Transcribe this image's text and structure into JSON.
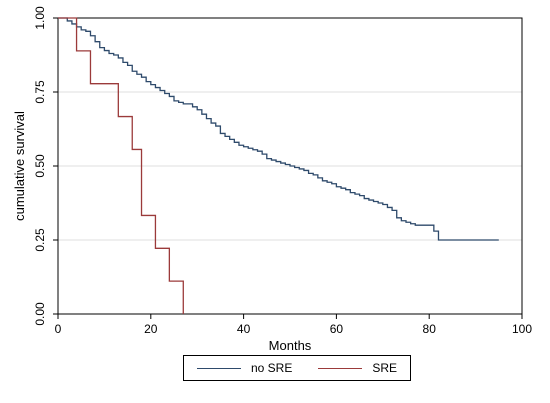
{
  "chart_data": {
    "type": "line",
    "step": true,
    "xlabel": "Months",
    "ylabel": "cumulative survival",
    "xlim": [
      0,
      100
    ],
    "ylim": [
      0,
      1
    ],
    "xticks": [
      "0",
      "20",
      "40",
      "60",
      "80",
      "100"
    ],
    "yticks": [
      "0.00",
      "0.25",
      "0.50",
      "0.75",
      "1.00"
    ],
    "grid": "horizontal",
    "legend_position": "bottom",
    "series": [
      {
        "name": "no SRE",
        "color": "#2e4a6b",
        "x": [
          0,
          2,
          3,
          4,
          5,
          6,
          7,
          8,
          9,
          10,
          11,
          12,
          13,
          14,
          15,
          16,
          17,
          18,
          19,
          20,
          21,
          22,
          23,
          24,
          25,
          26,
          27,
          28,
          29,
          30,
          31,
          32,
          33,
          34,
          35,
          36,
          37,
          38,
          39,
          40,
          41,
          42,
          43,
          44,
          45,
          46,
          47,
          48,
          49,
          50,
          51,
          52,
          53,
          54,
          55,
          56,
          57,
          58,
          59,
          60,
          61,
          62,
          63,
          64,
          65,
          66,
          67,
          68,
          69,
          70,
          71,
          72,
          73,
          74,
          75,
          76,
          77,
          78,
          79,
          80,
          81,
          82,
          95
        ],
        "y": [
          1.0,
          0.99,
          0.98,
          0.97,
          0.96,
          0.955,
          0.94,
          0.92,
          0.9,
          0.89,
          0.88,
          0.875,
          0.865,
          0.85,
          0.84,
          0.82,
          0.81,
          0.8,
          0.785,
          0.775,
          0.765,
          0.755,
          0.745,
          0.735,
          0.72,
          0.715,
          0.71,
          0.71,
          0.7,
          0.69,
          0.675,
          0.66,
          0.645,
          0.635,
          0.61,
          0.6,
          0.59,
          0.58,
          0.57,
          0.565,
          0.56,
          0.555,
          0.55,
          0.54,
          0.525,
          0.52,
          0.515,
          0.51,
          0.505,
          0.5,
          0.495,
          0.49,
          0.485,
          0.475,
          0.47,
          0.46,
          0.45,
          0.445,
          0.44,
          0.43,
          0.425,
          0.42,
          0.41,
          0.405,
          0.4,
          0.39,
          0.385,
          0.38,
          0.375,
          0.37,
          0.36,
          0.35,
          0.325,
          0.315,
          0.31,
          0.305,
          0.3,
          0.3,
          0.3,
          0.3,
          0.28,
          0.25,
          0.25
        ]
      },
      {
        "name": "SRE",
        "color": "#9b3a3a",
        "x": [
          0,
          4,
          7,
          13,
          16,
          18,
          21,
          24,
          27
        ],
        "y": [
          1.0,
          0.889,
          0.778,
          0.667,
          0.556,
          0.333,
          0.222,
          0.111,
          0.0
        ]
      }
    ]
  }
}
